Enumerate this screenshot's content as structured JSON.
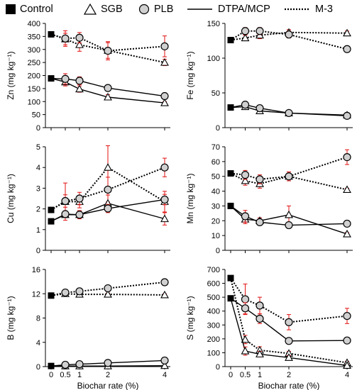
{
  "legend": {
    "control": "Control",
    "sgb": "SGB",
    "plb": "PLB",
    "dtpa": "DTPA/MCP",
    "m3": "M-3"
  },
  "chart_data": [
    {
      "type": "line",
      "panel": "Zn",
      "ylabel": "Zn (mg kg⁻¹)",
      "xlabel": "",
      "x": [
        0,
        0.5,
        1,
        2,
        4
      ],
      "xticks": [
        "0",
        "0.5",
        "1",
        "2",
        "4"
      ],
      "show_xticks": false,
      "ylim": [
        0,
        400
      ],
      "yticks": [
        "0",
        "50",
        "100",
        "150",
        "200",
        "250",
        "300",
        "350",
        "400"
      ],
      "control": [
        {
          "method": "M-3",
          "value": 358
        },
        {
          "method": "DTPA/MCP",
          "value": 189
        }
      ],
      "series": [
        {
          "biochar": "SGB",
          "method": "M-3",
          "values": [
            358,
            340,
            318,
            296,
            250
          ],
          "err": [
            0,
            22,
            25,
            30,
            12
          ]
        },
        {
          "biochar": "PLB",
          "method": "M-3",
          "values": [
            358,
            342,
            345,
            295,
            312
          ],
          "err": [
            0,
            30,
            20,
            35,
            40
          ]
        },
        {
          "biochar": "SGB",
          "method": "DTPA/MCP",
          "values": [
            189,
            175,
            148,
            117,
            95
          ],
          "err": [
            0,
            15,
            12,
            10,
            5
          ]
        },
        {
          "biochar": "PLB",
          "method": "DTPA/MCP",
          "values": [
            189,
            187,
            180,
            152,
            121
          ],
          "err": [
            0,
            20,
            15,
            10,
            5
          ]
        }
      ]
    },
    {
      "type": "line",
      "panel": "Fe",
      "ylabel": "Fe (mg kg⁻¹)",
      "xlabel": "",
      "x": [
        0,
        0.5,
        1,
        2,
        4
      ],
      "xticks": [
        "0",
        "0.5",
        "1",
        "2",
        "4"
      ],
      "show_xticks": false,
      "ylim": [
        0,
        150
      ],
      "yticks": [
        "0",
        "50",
        "100",
        "150"
      ],
      "control": [
        {
          "method": "M-3",
          "value": 126
        },
        {
          "method": "DTPA/MCP",
          "value": 29
        }
      ],
      "series": [
        {
          "biochar": "SGB",
          "method": "M-3",
          "values": [
            126,
            129,
            133,
            137,
            136
          ],
          "err": [
            0,
            4,
            5,
            4,
            3
          ]
        },
        {
          "biochar": "PLB",
          "method": "M-3",
          "values": [
            126,
            139,
            139,
            134,
            113
          ],
          "err": [
            0,
            5,
            5,
            5,
            3
          ]
        },
        {
          "biochar": "SGB",
          "method": "DTPA/MCP",
          "values": [
            29,
            30,
            24,
            21,
            18
          ],
          "err": [
            0,
            3,
            3,
            2,
            1
          ]
        },
        {
          "biochar": "PLB",
          "method": "DTPA/MCP",
          "values": [
            29,
            33,
            28,
            21,
            17
          ],
          "err": [
            0,
            4,
            3,
            2,
            1
          ]
        }
      ]
    },
    {
      "type": "line",
      "panel": "Cu",
      "ylabel": "Cu (mg kg⁻¹)",
      "xlabel": "",
      "x": [
        0,
        0.5,
        1,
        2,
        4
      ],
      "xticks": [
        "0",
        "0.5",
        "1",
        "2",
        "4"
      ],
      "show_xticks": false,
      "ylim": [
        0,
        5
      ],
      "yticks": [
        "0",
        "1",
        "2",
        "3",
        "4",
        "5"
      ],
      "control": [
        {
          "method": "M-3",
          "value": 1.95
        },
        {
          "method": "DTPA/MCP",
          "value": 1.4
        }
      ],
      "series": [
        {
          "biochar": "SGB",
          "method": "M-3",
          "values": [
            1.95,
            2.35,
            2.35,
            4.0,
            2.35
          ],
          "err": [
            0,
            0.9,
            0.3,
            1.05,
            0.5
          ]
        },
        {
          "biochar": "PLB",
          "method": "M-3",
          "values": [
            1.95,
            2.38,
            2.5,
            2.93,
            4.0
          ],
          "err": [
            0,
            0.3,
            0.3,
            0.6,
            0.45
          ]
        },
        {
          "biochar": "SGB",
          "method": "DTPA/MCP",
          "values": [
            1.4,
            1.72,
            1.72,
            2.27,
            1.52
          ],
          "err": [
            0,
            0.1,
            0.2,
            0.4,
            0.3
          ]
        },
        {
          "biochar": "PLB",
          "method": "DTPA/MCP",
          "values": [
            1.4,
            1.75,
            1.72,
            2.02,
            2.45
          ],
          "err": [
            0,
            0.15,
            0.15,
            0.2,
            0.25
          ]
        }
      ]
    },
    {
      "type": "line",
      "panel": "Mn",
      "ylabel": "Mn (mg kg⁻¹)",
      "xlabel": "",
      "x": [
        0,
        0.5,
        1,
        2,
        4
      ],
      "xticks": [
        "0",
        "0.5",
        "1",
        "2",
        "4"
      ],
      "show_xticks": false,
      "ylim": [
        0,
        70
      ],
      "yticks": [
        "0",
        "10",
        "20",
        "30",
        "40",
        "50",
        "60",
        "70"
      ],
      "control": [
        {
          "method": "M-3",
          "value": 52
        },
        {
          "method": "DTPA/MCP",
          "value": 30
        }
      ],
      "series": [
        {
          "biochar": "SGB",
          "method": "M-3",
          "values": [
            52,
            47,
            45,
            50,
            41
          ],
          "err": [
            0,
            3,
            3,
            3,
            1
          ]
        },
        {
          "biochar": "PLB",
          "method": "M-3",
          "values": [
            52,
            51,
            48,
            50,
            63
          ],
          "err": [
            0,
            3,
            3,
            3,
            5
          ]
        },
        {
          "biochar": "SGB",
          "method": "DTPA/MCP",
          "values": [
            30,
            21,
            20,
            24,
            11
          ],
          "err": [
            0,
            3,
            2,
            6,
            1
          ]
        },
        {
          "biochar": "PLB",
          "method": "DTPA/MCP",
          "values": [
            30,
            23,
            19,
            17,
            18
          ],
          "err": [
            0,
            4,
            2,
            2,
            1
          ]
        }
      ]
    },
    {
      "type": "line",
      "panel": "B",
      "ylabel": "B (mg kg⁻¹)",
      "xlabel": "Biochar rate (%)",
      "x": [
        0,
        0.5,
        1,
        2,
        4
      ],
      "xticks": [
        "0",
        "0.5",
        "1",
        "2",
        "4"
      ],
      "show_xticks": true,
      "ylim": [
        0,
        16
      ],
      "yticks": [
        "0",
        "4",
        "8",
        "12",
        "16"
      ],
      "control": [
        {
          "method": "M-3",
          "value": 11.7
        },
        {
          "method": "DTPA/MCP",
          "value": 0.1
        }
      ],
      "series": [
        {
          "biochar": "SGB",
          "method": "M-3",
          "values": [
            11.7,
            12.0,
            11.9,
            11.9,
            11.8
          ],
          "err": [
            0,
            0.2,
            0.2,
            0.2,
            0.2
          ]
        },
        {
          "biochar": "PLB",
          "method": "M-3",
          "values": [
            11.7,
            12.2,
            12.4,
            12.9,
            13.9
          ],
          "err": [
            0,
            0.2,
            0.2,
            0.2,
            0.2
          ]
        },
        {
          "biochar": "SGB",
          "method": "DTPA/MCP",
          "values": [
            0.1,
            0.1,
            0.1,
            0.1,
            0.15
          ],
          "err": [
            0,
            0.05,
            0.05,
            0.05,
            0.05
          ]
        },
        {
          "biochar": "PLB",
          "method": "DTPA/MCP",
          "values": [
            0.1,
            0.3,
            0.4,
            0.6,
            1.0
          ],
          "err": [
            0,
            0.1,
            0.1,
            0.1,
            0.1
          ]
        }
      ]
    },
    {
      "type": "line",
      "panel": "S",
      "ylabel": "S (mg kg⁻¹)",
      "xlabel": "Biochar rate (%)",
      "x": [
        0,
        0.5,
        1,
        2,
        4
      ],
      "xticks": [
        "0",
        "0.5",
        "1",
        "2",
        "4"
      ],
      "show_xticks": true,
      "ylim": [
        0,
        700
      ],
      "yticks": [
        "0",
        "100",
        "200",
        "300",
        "400",
        "500",
        "600",
        "700"
      ],
      "control": [
        {
          "method": "M-3",
          "value": 638
        },
        {
          "method": "DTPA/MCP",
          "value": 492
        }
      ],
      "series": [
        {
          "biochar": "SGB",
          "method": "M-3",
          "values": [
            638,
            195,
            118,
            95,
            28
          ],
          "err": [
            0,
            30,
            25,
            15,
            10
          ]
        },
        {
          "biochar": "PLB",
          "method": "M-3",
          "values": [
            638,
            485,
            440,
            320,
            365
          ],
          "err": [
            0,
            110,
            60,
            55,
            55
          ]
        },
        {
          "biochar": "SGB",
          "method": "DTPA/MCP",
          "values": [
            492,
            112,
            90,
            65,
            8
          ],
          "err": [
            0,
            30,
            20,
            15,
            5
          ]
        },
        {
          "biochar": "PLB",
          "method": "DTPA/MCP",
          "values": [
            492,
            420,
            345,
            185,
            188
          ],
          "err": [
            0,
            40,
            35,
            20,
            10
          ]
        }
      ]
    }
  ]
}
